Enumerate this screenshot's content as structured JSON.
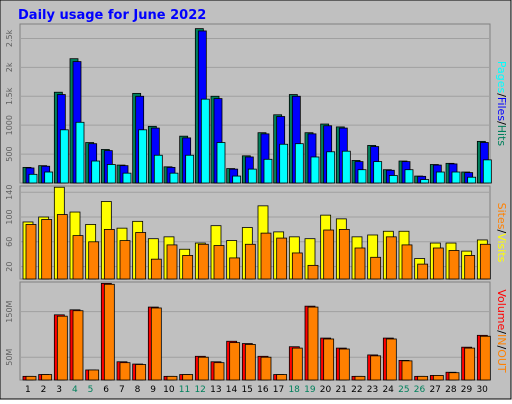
{
  "title": "Daily usage for June 2022",
  "colors": {
    "background": "#c0c0c0",
    "hits": "#00805c",
    "files": "#0000ff",
    "pages": "#00ffff",
    "visits": "#ffff00",
    "sites": "#ff8000",
    "kbytes": "#ff0000",
    "kin": "#ff8000",
    "kout": "#ff8000",
    "title": "#0000ff",
    "weekend": "#00805c"
  },
  "chart_data": [
    {
      "type": "bar",
      "name": "Hits / Files / Pages",
      "axis_label": {
        "parts": [
          {
            "text": "Pages",
            "color_key": "pages"
          },
          {
            "text": "/",
            "color_key": "text"
          },
          {
            "text": "Files",
            "color_key": "files"
          },
          {
            "text": "/",
            "color_key": "text"
          },
          {
            "text": "Hits",
            "color_key": "hits"
          }
        ]
      },
      "ylim": [
        0,
        2750
      ],
      "yticks": [
        {
          "value": 500,
          "label": "500"
        },
        {
          "value": 1000,
          "label": "1000"
        },
        {
          "value": 1500,
          "label": "1.5k"
        },
        {
          "value": 2000,
          "label": "2k"
        },
        {
          "value": 2500,
          "label": "2.5k"
        }
      ],
      "categories": [
        "1",
        "2",
        "3",
        "4",
        "5",
        "6",
        "7",
        "8",
        "9",
        "10",
        "11",
        "12",
        "13",
        "14",
        "15",
        "16",
        "17",
        "18",
        "19",
        "20",
        "21",
        "22",
        "23",
        "24",
        "25",
        "26",
        "27",
        "28",
        "29",
        "30"
      ],
      "series": [
        {
          "name": "Hits",
          "color_key": "hits",
          "values": [
            270,
            300,
            1570,
            2150,
            700,
            580,
            310,
            1550,
            980,
            280,
            810,
            2670,
            1500,
            250,
            470,
            870,
            1180,
            1530,
            870,
            1020,
            970,
            390,
            650,
            230,
            380,
            120,
            320,
            340,
            190,
            720
          ]
        },
        {
          "name": "Files",
          "color_key": "files",
          "values": [
            260,
            290,
            1530,
            2100,
            680,
            560,
            300,
            1500,
            950,
            270,
            780,
            2630,
            1460,
            240,
            450,
            850,
            1150,
            1500,
            850,
            990,
            950,
            370,
            630,
            220,
            370,
            115,
            310,
            330,
            180,
            700
          ]
        },
        {
          "name": "Pages",
          "color_key": "pages",
          "values": [
            150,
            190,
            920,
            1050,
            380,
            320,
            170,
            920,
            480,
            170,
            480,
            1450,
            700,
            120,
            240,
            410,
            670,
            680,
            450,
            540,
            550,
            230,
            370,
            130,
            230,
            60,
            190,
            190,
            100,
            400
          ]
        }
      ]
    },
    {
      "type": "bar",
      "name": "Visits / Sites",
      "axis_label": {
        "parts": [
          {
            "text": "Sites",
            "color_key": "sites"
          },
          {
            "text": "/",
            "color_key": "text"
          },
          {
            "text": "Visits",
            "color_key": "visits"
          }
        ]
      },
      "ylim": [
        0,
        150
      ],
      "yticks": [
        {
          "value": 20,
          "label": "20"
        },
        {
          "value": 60,
          "label": "60"
        },
        {
          "value": 100,
          "label": "100"
        },
        {
          "value": 140,
          "label": "140"
        }
      ],
      "categories": [
        "1",
        "2",
        "3",
        "4",
        "5",
        "6",
        "7",
        "8",
        "9",
        "10",
        "11",
        "12",
        "13",
        "14",
        "15",
        "16",
        "17",
        "18",
        "19",
        "20",
        "21",
        "22",
        "23",
        "24",
        "25",
        "26",
        "27",
        "28",
        "29",
        "30"
      ],
      "series": [
        {
          "name": "Visits",
          "color_key": "visits",
          "values": [
            92,
            100,
            148,
            108,
            88,
            125,
            82,
            93,
            65,
            68,
            48,
            58,
            86,
            62,
            83,
            118,
            76,
            68,
            65,
            103,
            97,
            68,
            71,
            77,
            77,
            33,
            58,
            58,
            45,
            63
          ]
        },
        {
          "name": "Sites",
          "color_key": "sites",
          "values": [
            88,
            96,
            104,
            70,
            60,
            80,
            62,
            75,
            32,
            55,
            38,
            56,
            54,
            34,
            56,
            74,
            66,
            42,
            22,
            79,
            80,
            50,
            35,
            68,
            55,
            24,
            50,
            46,
            38,
            56
          ]
        }
      ]
    },
    {
      "type": "bar",
      "name": "Volume / IN / OUT",
      "axis_label": {
        "parts": [
          {
            "text": "Volume",
            "color_key": "kbytes"
          },
          {
            "text": "/",
            "color_key": "text"
          },
          {
            "text": "IN",
            "color_key": "kin"
          },
          {
            "text": "/",
            "color_key": "text"
          },
          {
            "text": "OUT",
            "color_key": "kout"
          }
        ]
      },
      "ylim": [
        0,
        215
      ],
      "yticks": [
        {
          "value": 50,
          "label": "50M"
        },
        {
          "value": 150,
          "label": "150M"
        }
      ],
      "categories": [
        "1",
        "2",
        "3",
        "4",
        "5",
        "6",
        "7",
        "8",
        "9",
        "10",
        "11",
        "12",
        "13",
        "14",
        "15",
        "16",
        "17",
        "18",
        "19",
        "20",
        "21",
        "22",
        "23",
        "24",
        "25",
        "26",
        "27",
        "28",
        "29",
        "30"
      ],
      "series": [
        {
          "name": "Volume",
          "color_key": "kbytes",
          "values": [
            8,
            12,
            143,
            154,
            22,
            212,
            40,
            35,
            160,
            8,
            12,
            52,
            40,
            85,
            80,
            52,
            12,
            73,
            162,
            92,
            70,
            8,
            55,
            92,
            43,
            8,
            10,
            17,
            72,
            98
          ]
        },
        {
          "name": "OUT",
          "color_key": "kout",
          "values": [
            8,
            12,
            140,
            152,
            22,
            210,
            38,
            34,
            158,
            8,
            12,
            50,
            38,
            82,
            78,
            50,
            12,
            70,
            160,
            90,
            68,
            8,
            53,
            90,
            42,
            8,
            10,
            16,
            70,
            96
          ]
        }
      ]
    }
  ],
  "weekend_days": [
    4,
    5,
    11,
    12,
    18,
    19,
    25,
    26
  ],
  "text_color": "#000000"
}
